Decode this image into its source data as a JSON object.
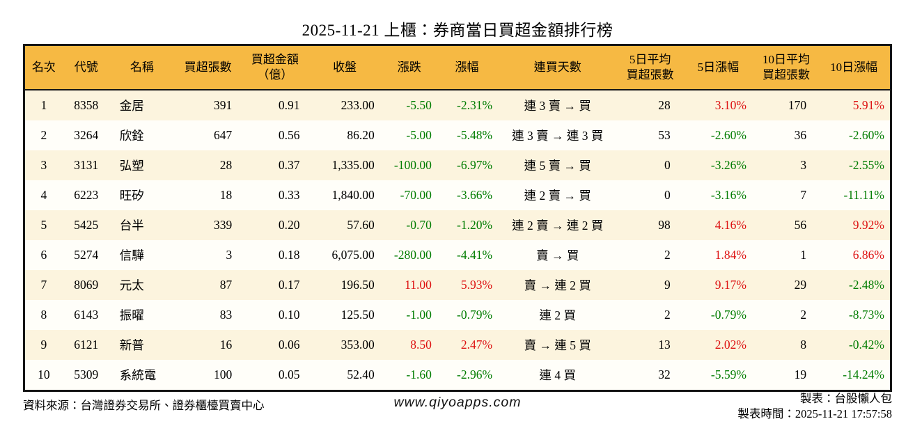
{
  "title": "2025-11-21 上櫃：券商當日買超金額排行榜",
  "colors": {
    "up": "#dd1111",
    "down": "#007c00",
    "header_bg": "#f6b943",
    "stripe_bg": "#fcf4de"
  },
  "chart_data": {
    "type": "table",
    "title": "2025-11-21 上櫃：券商當日買超金額排行榜",
    "columns": [
      "名次",
      "代號",
      "名稱",
      "買超張數",
      "買超金額\n（億）",
      "收盤",
      "漲跌",
      "漲幅",
      "連買天數",
      "5日平均\n買超張數",
      "5日漲幅",
      "10日平均\n買超張數",
      "10日漲幅"
    ],
    "rows": [
      [
        "1",
        "8358",
        "金居",
        "391",
        "0.91",
        "233.00",
        "-5.50",
        "-2.31%",
        "連 3 賣 → 買",
        "28",
        "3.10%",
        "170",
        "5.91%"
      ],
      [
        "2",
        "3264",
        "欣銓",
        "647",
        "0.56",
        "86.20",
        "-5.00",
        "-5.48%",
        "連 3 賣 → 連 3 買",
        "53",
        "-2.60%",
        "36",
        "-2.60%"
      ],
      [
        "3",
        "3131",
        "弘塑",
        "28",
        "0.37",
        "1,335.00",
        "-100.00",
        "-6.97%",
        "連 5 賣 → 買",
        "0",
        "-3.26%",
        "3",
        "-2.55%"
      ],
      [
        "4",
        "6223",
        "旺矽",
        "18",
        "0.33",
        "1,840.00",
        "-70.00",
        "-3.66%",
        "連 2 賣 → 買",
        "0",
        "-3.16%",
        "7",
        "-11.11%"
      ],
      [
        "5",
        "5425",
        "台半",
        "339",
        "0.20",
        "57.60",
        "-0.70",
        "-1.20%",
        "連 2 賣 → 連 2 買",
        "98",
        "4.16%",
        "56",
        "9.92%"
      ],
      [
        "6",
        "5274",
        "信驊",
        "3",
        "0.18",
        "6,075.00",
        "-280.00",
        "-4.41%",
        "賣 → 買",
        "2",
        "1.84%",
        "1",
        "6.86%"
      ],
      [
        "7",
        "8069",
        "元太",
        "87",
        "0.17",
        "196.50",
        "11.00",
        "5.93%",
        "賣 → 連 2 買",
        "9",
        "9.17%",
        "29",
        "-2.48%"
      ],
      [
        "8",
        "6143",
        "振曜",
        "83",
        "0.10",
        "125.50",
        "-1.00",
        "-0.79%",
        "連 2 買",
        "2",
        "-0.79%",
        "2",
        "-8.73%"
      ],
      [
        "9",
        "6121",
        "新普",
        "16",
        "0.06",
        "353.00",
        "8.50",
        "2.47%",
        "賣 → 連 5 買",
        "13",
        "2.02%",
        "8",
        "-0.42%"
      ],
      [
        "10",
        "5309",
        "系統電",
        "100",
        "0.05",
        "52.40",
        "-1.60",
        "-2.96%",
        "連 4 買",
        "32",
        "-5.59%",
        "19",
        "-14.24%"
      ]
    ]
  },
  "footer": {
    "source": "資料來源：台灣證券交易所、證券櫃檯買賣中心",
    "website": "www.qiyoapps.com",
    "maker": "製表：台股懶人包",
    "made_time": "製表時間：2025-11-21 17:57:58"
  }
}
